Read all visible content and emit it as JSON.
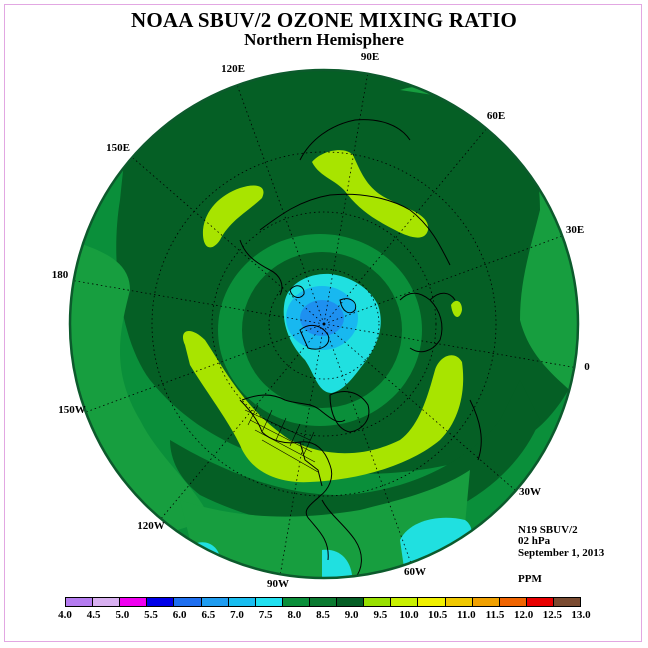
{
  "title": "NOAA SBUV/2 OZONE MIXING RATIO",
  "subtitle": "Northern Hemisphere",
  "longitude_labels": [
    "90E",
    "60E",
    "30E",
    "0",
    "30W",
    "60W",
    "90W",
    "120W",
    "150W",
    "180",
    "150E",
    "120E"
  ],
  "info": {
    "instrument": "N19 SBUV/2",
    "pressure": "02 hPa",
    "date": "September 1, 2013",
    "units": "PPM"
  },
  "colorbar": {
    "ticks": [
      "4.0",
      "4.5",
      "5.0",
      "5.5",
      "6.0",
      "6.5",
      "7.0",
      "7.5",
      "8.0",
      "8.5",
      "9.0",
      "9.5",
      "10.0",
      "10.5",
      "11.0",
      "11.5",
      "12.0",
      "12.5",
      "13.0"
    ],
    "colors": [
      "#b57cf0",
      "#d8b0f0",
      "#f000f0",
      "#0000e8",
      "#1e6ff0",
      "#1e9cf0",
      "#18bdf0",
      "#20e0f0",
      "#0a8f3a",
      "#0a7a30",
      "#055f25",
      "#98e000",
      "#c8f000",
      "#f0f000",
      "#f0c800",
      "#f0a000",
      "#f06400",
      "#e80000",
      "#7a4a30"
    ]
  },
  "map_colors": {
    "level_8_5": "#0a8f3a",
    "level_9_0": "#055f25",
    "level_8_0": "#179e3f",
    "level_9_5": "#a8e400",
    "level_7_5": "#20e0e0",
    "level_7_0": "#18b8f0",
    "level_6_5": "#1e90f0"
  }
}
